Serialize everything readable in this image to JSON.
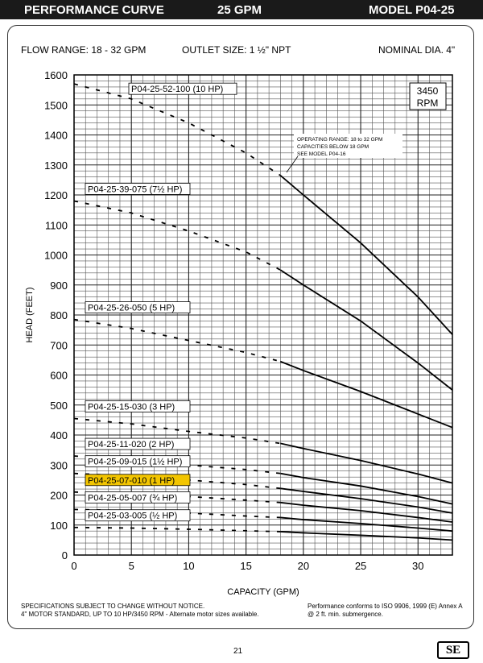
{
  "header": {
    "left": "PERFORMANCE CURVE",
    "center": "25 GPM",
    "right": "MODEL  P04-25"
  },
  "info": {
    "flow_range": "FLOW RANGE: 18 - 32 GPM",
    "outlet_size": "OUTLET SIZE: 1 ½\" NPT",
    "nominal_dia": "NOMINAL DIA. 4\""
  },
  "rpm_box": {
    "line1": "3450",
    "line2": "RPM"
  },
  "callout": {
    "line1": "OPERATING RANGE: 18 to 32 GPM",
    "line2": "CAPACITIES BELOW 18 GPM",
    "line3": "SEE MODEL  P04-16"
  },
  "footer": {
    "left1": "SPECIFICATIONS SUBJECT TO CHANGE WITHOUT NOTICE.",
    "left2": "4\" MOTOR STANDARD, UP TO 10 HP/3450 RPM - Alternate motor sizes available.",
    "right1": "Performance conforms to ISO 9906, 1999 (E) Annex A",
    "right2": "@ 2 ft. min. submergence.",
    "page": "21",
    "logo": "SE"
  },
  "chart_data": {
    "type": "line",
    "xlabel": "CAPACITY (GPM)",
    "ylabel": "HEAD (FEET)",
    "xlim": [
      0,
      33
    ],
    "ylim": [
      0,
      1600
    ],
    "x_ticks": [
      0,
      5,
      10,
      15,
      20,
      25,
      30
    ],
    "y_ticks": [
      0,
      100,
      200,
      300,
      400,
      500,
      600,
      700,
      800,
      900,
      1000,
      1100,
      1200,
      1300,
      1400,
      1500,
      1600
    ],
    "grid": true,
    "operating_range_start": 18,
    "highlight_color": "#f2c500",
    "series": [
      {
        "name": "P04-25-52-100 (10 HP)",
        "x": [
          0,
          5,
          10,
          15,
          18,
          20,
          25,
          30,
          33
        ],
        "y": [
          1570,
          1520,
          1440,
          1340,
          1265,
          1200,
          1040,
          860,
          735
        ]
      },
      {
        "name": "P04-25-39-075 (7½ HP)",
        "x": [
          0,
          5,
          10,
          15,
          18,
          20,
          25,
          30,
          33
        ],
        "y": [
          1180,
          1140,
          1080,
          1010,
          950,
          900,
          780,
          640,
          550
        ]
      },
      {
        "name": "P04-25-26-050 (5 HP)",
        "x": [
          0,
          5,
          10,
          15,
          18,
          20,
          25,
          30,
          33
        ],
        "y": [
          785,
          755,
          715,
          675,
          645,
          615,
          545,
          470,
          425
        ]
      },
      {
        "name": "P04-25-15-030 (3 HP)",
        "x": [
          0,
          5,
          10,
          15,
          18,
          20,
          25,
          30,
          33
        ],
        "y": [
          455,
          437,
          412,
          390,
          372,
          355,
          315,
          270,
          240
        ]
      },
      {
        "name": "P04-25-11-020 (2 HP)",
        "x": [
          0,
          5,
          10,
          15,
          18,
          20,
          25,
          30,
          33
        ],
        "y": [
          330,
          318,
          300,
          285,
          272,
          258,
          230,
          195,
          170
        ]
      },
      {
        "name": "P04-25-09-015 (1½ HP)",
        "x": [
          0,
          5,
          10,
          15,
          18,
          20,
          25,
          30,
          33
        ],
        "y": [
          272,
          263,
          250,
          235,
          222,
          212,
          188,
          160,
          140
        ]
      },
      {
        "name": "P04-25-07-010 (1 HP)",
        "x": [
          0,
          5,
          10,
          15,
          18,
          20,
          25,
          30,
          33
        ],
        "y": [
          210,
          204,
          195,
          183,
          175,
          166,
          148,
          125,
          110
        ]
      },
      {
        "name": "P04-25-05-007 (¾ HP)",
        "x": [
          0,
          5,
          10,
          15,
          18,
          20,
          25,
          30,
          33
        ],
        "y": [
          152,
          148,
          140,
          130,
          125,
          118,
          105,
          90,
          80
        ]
      },
      {
        "name": "P04-25-03-005 (½ HP)",
        "x": [
          0,
          5,
          10,
          15,
          18,
          20,
          25,
          30,
          33
        ],
        "y": [
          92,
          90,
          86,
          81,
          78,
          74,
          66,
          57,
          50
        ]
      }
    ],
    "highlighted_series": "P04-25-07-010 (1 HP)"
  }
}
